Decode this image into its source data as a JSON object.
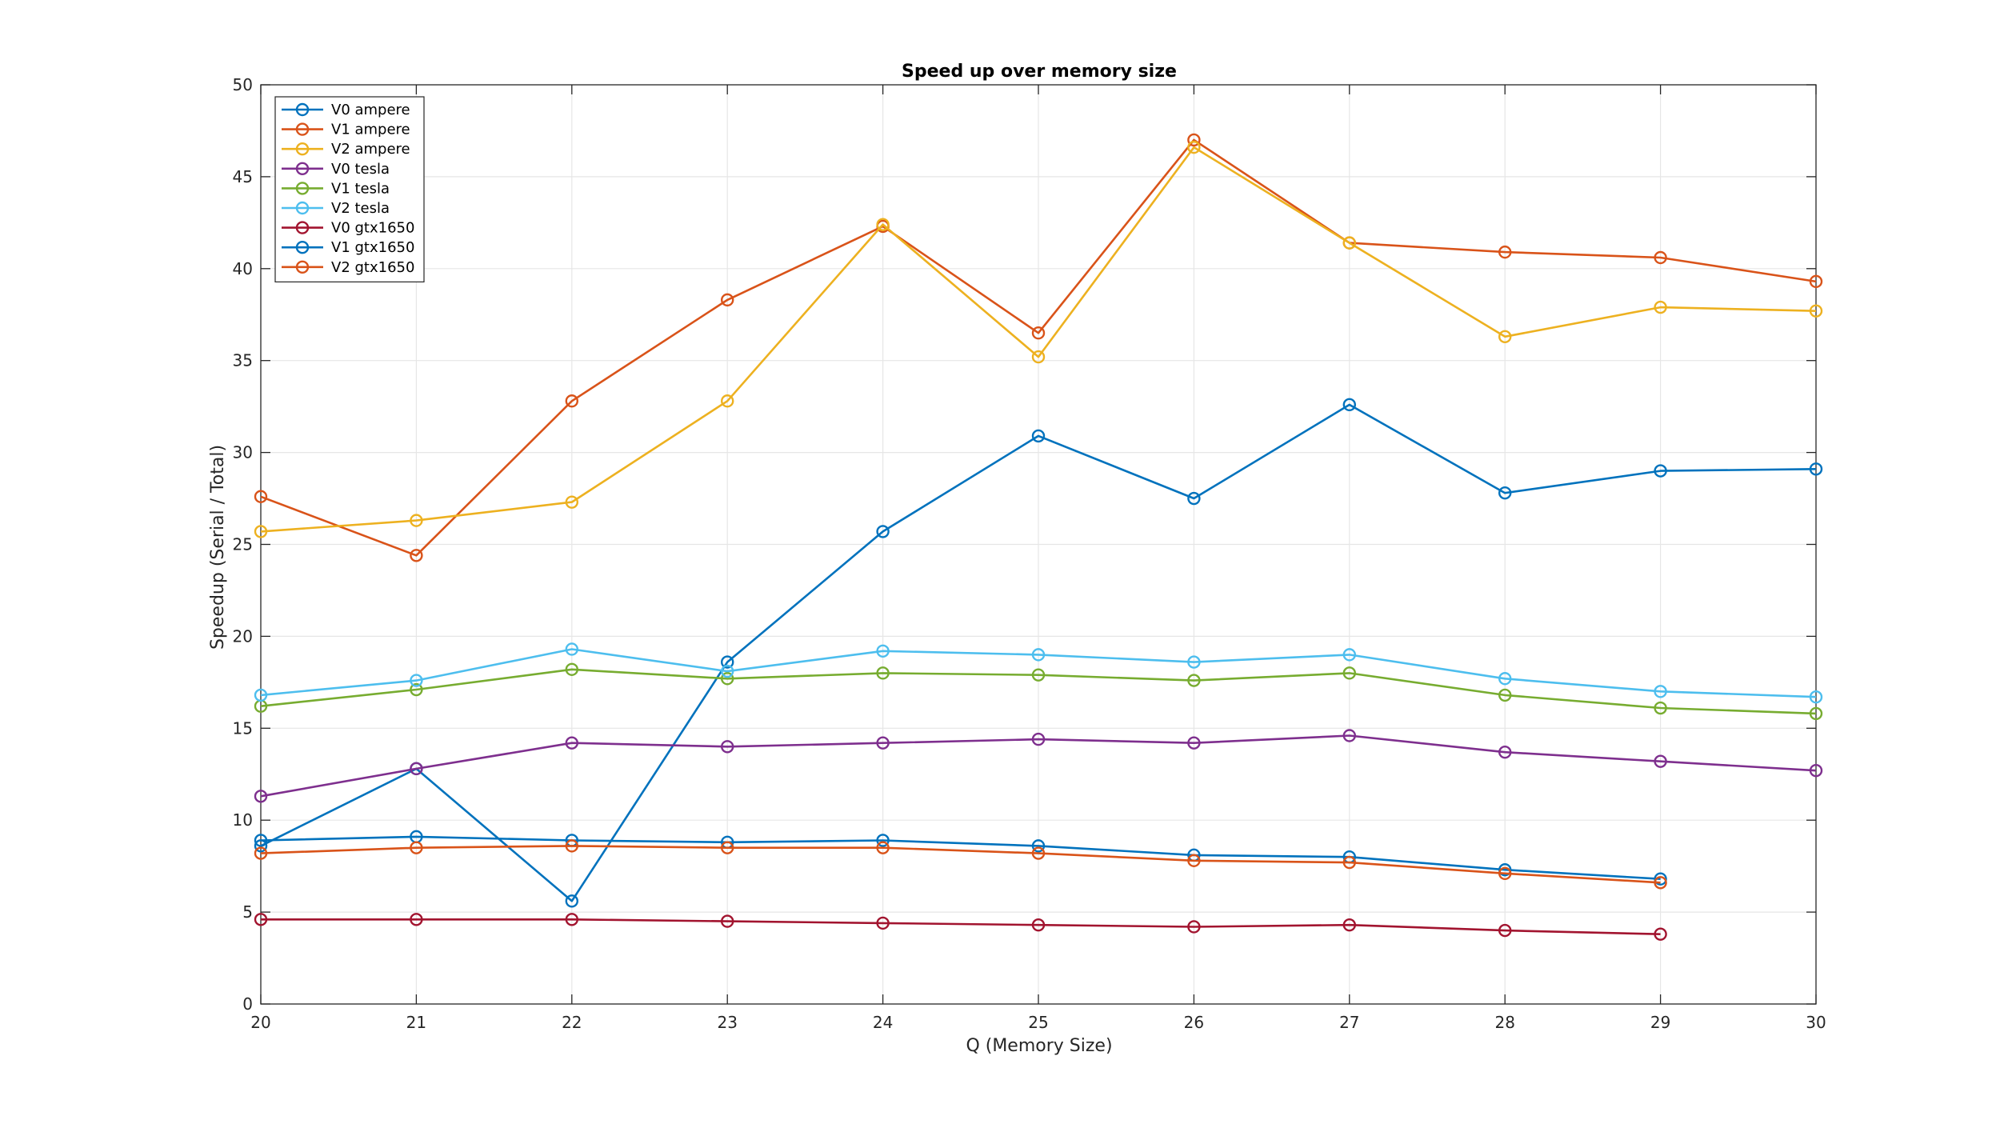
{
  "chart_data": {
    "type": "line",
    "title": "Speed up over memory size",
    "xlabel": "Q (Memory Size)",
    "ylabel": "Speedup (Serial / Total)",
    "xlim": [
      20,
      30
    ],
    "ylim": [
      0,
      50
    ],
    "xticks": [
      20,
      21,
      22,
      23,
      24,
      25,
      26,
      27,
      28,
      29,
      30
    ],
    "yticks": [
      0,
      5,
      10,
      15,
      20,
      25,
      30,
      35,
      40,
      45,
      50
    ],
    "grid": true,
    "legend_position": "top-left",
    "marker": "circle",
    "series": [
      {
        "name": "V0 ampere",
        "color": "#0072BD",
        "x": [
          20,
          21,
          22,
          23,
          24,
          25,
          26,
          27,
          28,
          29,
          30
        ],
        "values": [
          8.6,
          12.8,
          5.6,
          18.6,
          25.7,
          30.9,
          27.5,
          32.6,
          27.8,
          29.0,
          29.1
        ]
      },
      {
        "name": "V1 ampere",
        "color": "#D95319",
        "x": [
          20,
          21,
          22,
          23,
          24,
          25,
          26,
          27,
          28,
          29,
          30
        ],
        "values": [
          27.6,
          24.4,
          32.8,
          38.3,
          42.3,
          36.5,
          47.0,
          41.4,
          40.9,
          40.6,
          39.3
        ]
      },
      {
        "name": "V2 ampere",
        "color": "#EDB120",
        "x": [
          20,
          21,
          22,
          23,
          24,
          25,
          26,
          27,
          28,
          29,
          30
        ],
        "values": [
          25.7,
          26.3,
          27.3,
          32.8,
          42.4,
          35.2,
          46.6,
          41.4,
          36.3,
          37.9,
          37.7
        ]
      },
      {
        "name": "V0 tesla",
        "color": "#7E2F8E",
        "x": [
          20,
          21,
          22,
          23,
          24,
          25,
          26,
          27,
          28,
          29,
          30
        ],
        "values": [
          11.3,
          12.8,
          14.2,
          14.0,
          14.2,
          14.4,
          14.2,
          14.6,
          13.7,
          13.2,
          12.7
        ]
      },
      {
        "name": "V1 tesla",
        "color": "#77AC30",
        "x": [
          20,
          21,
          22,
          23,
          24,
          25,
          26,
          27,
          28,
          29,
          30
        ],
        "values": [
          16.2,
          17.1,
          18.2,
          17.7,
          18.0,
          17.9,
          17.6,
          18.0,
          16.8,
          16.1,
          15.8
        ]
      },
      {
        "name": "V2 tesla",
        "color": "#4DBEEE",
        "x": [
          20,
          21,
          22,
          23,
          24,
          25,
          26,
          27,
          28,
          29,
          30
        ],
        "values": [
          16.8,
          17.6,
          19.3,
          18.1,
          19.2,
          19.0,
          18.6,
          19.0,
          17.7,
          17.0,
          16.7
        ]
      },
      {
        "name": "V0 gtx1650",
        "color": "#A2142F",
        "x": [
          20,
          21,
          22,
          23,
          24,
          25,
          26,
          27,
          28,
          29
        ],
        "values": [
          4.6,
          4.6,
          4.6,
          4.5,
          4.4,
          4.3,
          4.2,
          4.3,
          4.0,
          3.8
        ]
      },
      {
        "name": "V1 gtx1650",
        "color": "#0072BD",
        "x": [
          20,
          21,
          22,
          23,
          24,
          25,
          26,
          27,
          28,
          29
        ],
        "values": [
          8.9,
          9.1,
          8.9,
          8.8,
          8.9,
          8.6,
          8.1,
          8.0,
          7.3,
          6.8
        ]
      },
      {
        "name": "V2 gtx1650",
        "color": "#D95319",
        "x": [
          20,
          21,
          22,
          23,
          24,
          25,
          26,
          27,
          28,
          29
        ],
        "values": [
          8.2,
          8.5,
          8.6,
          8.5,
          8.5,
          8.2,
          7.8,
          7.7,
          7.1,
          6.6
        ]
      }
    ]
  }
}
